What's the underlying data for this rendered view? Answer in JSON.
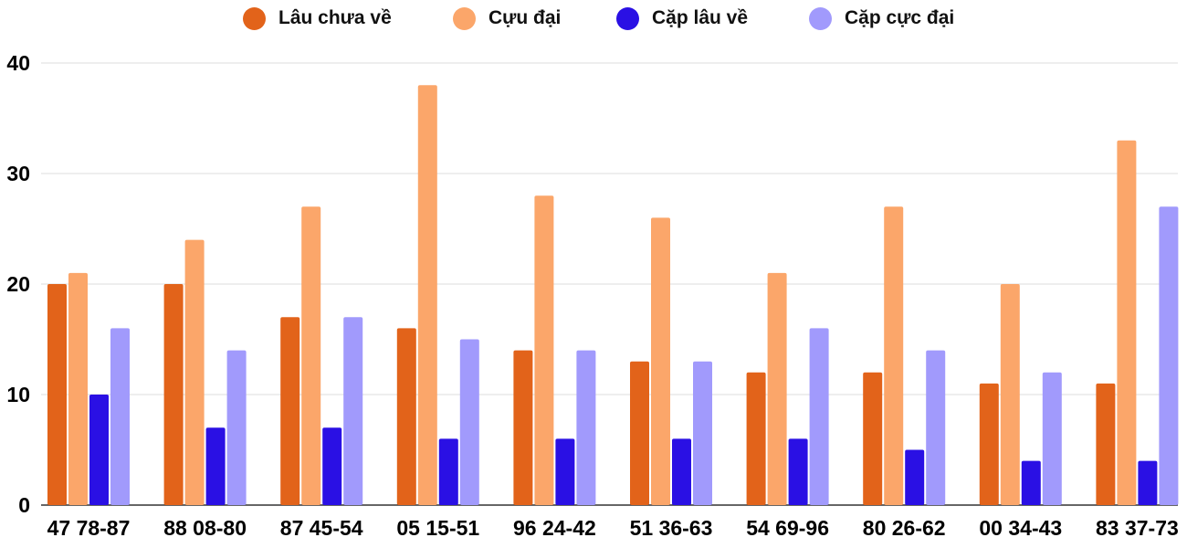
{
  "chart_data": {
    "type": "bar",
    "title": "",
    "xlabel": "",
    "ylabel": "",
    "ylim": [
      0,
      40
    ],
    "yticks": [
      0,
      10,
      20,
      30,
      40
    ],
    "grid": true,
    "legend_position": "top",
    "categories": [
      "47 78-87",
      "88 08-80",
      "87 45-54",
      "05 15-51",
      "96 24-42",
      "51 36-63",
      "54 69-96",
      "80 26-62",
      "00 34-43",
      "83 37-73"
    ],
    "series": [
      {
        "name": "Lâu chưa về",
        "color": "#e2631a",
        "values": [
          20,
          20,
          17,
          16,
          14,
          13,
          12,
          12,
          11,
          11
        ]
      },
      {
        "name": "Cựu đại",
        "color": "#fba66a",
        "values": [
          21,
          24,
          27,
          38,
          28,
          26,
          21,
          27,
          20,
          33
        ]
      },
      {
        "name": "Cặp lâu về",
        "color": "#2a10e4",
        "values": [
          10,
          7,
          7,
          6,
          6,
          6,
          6,
          5,
          4,
          4
        ]
      },
      {
        "name": "Cặp cực đại",
        "color": "#a19afc",
        "values": [
          16,
          14,
          17,
          15,
          14,
          13,
          16,
          14,
          12,
          27
        ]
      }
    ]
  }
}
